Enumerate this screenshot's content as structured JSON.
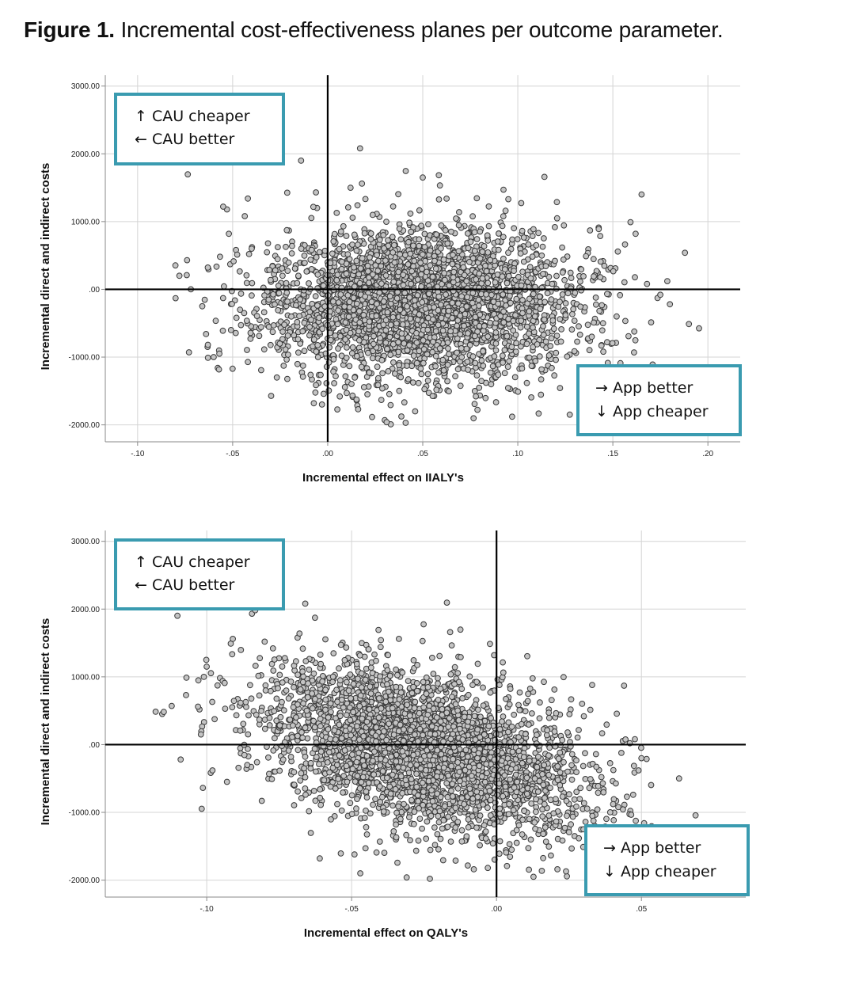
{
  "figure": {
    "title_lead": "Figure 1.",
    "title_rest": " Incremental cost-effectiveness planes per outcome parameter."
  },
  "colors": {
    "box_border": "#3a9bb0",
    "point_fill": "#c4c4c4",
    "point_stroke": "#3a3a3a",
    "grid": "#d4d4d4",
    "zero_line": "#000000"
  },
  "chart_data": [
    {
      "type": "scatter",
      "title": "",
      "xlabel": "Incremental effect on IIALY's",
      "ylabel": "Incremental direct and indirect costs",
      "xlim": [
        -0.117,
        0.217
      ],
      "ylim": [
        -2250,
        3160
      ],
      "xticks": [
        -0.1,
        -0.05,
        0.0,
        0.05,
        0.1,
        0.15,
        0.2
      ],
      "xtick_labels": [
        "-.10",
        "-.05",
        ".00",
        ".05",
        ".10",
        ".15",
        ".20"
      ],
      "yticks": [
        3000,
        2000,
        1000,
        0,
        -1000,
        -2000
      ],
      "ytick_labels": [
        "3000.00",
        "2000.00",
        "1000.00",
        ".00",
        "-1000.00",
        "-2000.00"
      ],
      "grid": true,
      "quadrant_labels": {
        "top_left": [
          "↑ CAU cheaper",
          "← CAU better"
        ],
        "bottom_right": [
          "→ App better",
          "↓ App cheaper"
        ]
      },
      "cloud": {
        "n": 3200,
        "x_mean": 0.05,
        "x_sd": 0.04,
        "y_mean": -200,
        "y_sd": 560,
        "corr": 0.0,
        "seed": 11
      },
      "outliers": [
        [
          -0.078,
          200
        ],
        [
          -0.072,
          0
        ],
        [
          -0.08,
          -130
        ],
        [
          -0.074,
          430
        ],
        [
          -0.066,
          -250
        ],
        [
          -0.064,
          -660
        ],
        [
          -0.073,
          -930
        ],
        [
          -0.063,
          -1010
        ],
        [
          -0.053,
          1180
        ],
        [
          -0.052,
          820
        ],
        [
          -0.055,
          1220
        ],
        [
          -0.042,
          1340
        ],
        [
          -0.06,
          -1000
        ],
        [
          -0.057,
          -950
        ],
        [
          -0.048,
          -420
        ],
        [
          -0.04,
          600
        ],
        [
          0.017,
          2080
        ],
        [
          0.05,
          1650
        ],
        [
          0.114,
          1660
        ],
        [
          0.162,
          820
        ],
        [
          0.138,
          870
        ],
        [
          0.168,
          80
        ],
        [
          0.175,
          -80
        ],
        [
          0.18,
          -220
        ],
        [
          0.14,
          -490
        ],
        [
          0.152,
          -400
        ],
        [
          0.147,
          -780
        ],
        [
          0.145,
          -920
        ],
        [
          0.154,
          -1090
        ],
        [
          0.097,
          -1880
        ],
        [
          0.046,
          -1800
        ],
        [
          0.03,
          -1930
        ],
        [
          0.041,
          -1970
        ],
        [
          0.031,
          -1960
        ],
        [
          0.016,
          -1770
        ],
        [
          -0.003,
          -1700
        ],
        [
          0.01,
          -1530
        ],
        [
          0.012,
          1500
        ],
        [
          0.018,
          1560
        ],
        [
          0.095,
          1330
        ]
      ]
    },
    {
      "type": "scatter",
      "title": "",
      "xlabel": "Incremental effect on QALY's",
      "ylabel": "Incremental direct and indirect costs",
      "xlim": [
        -0.135,
        0.086
      ],
      "ylim": [
        -2250,
        3160
      ],
      "xticks": [
        -0.1,
        -0.05,
        0.0,
        0.05
      ],
      "xtick_labels": [
        "-.10",
        "-.05",
        ".00",
        ".05"
      ],
      "yticks": [
        3000,
        2000,
        1000,
        0,
        -1000,
        -2000
      ],
      "ytick_labels": [
        "3000.00",
        "2000.00",
        "1000.00",
        ".00",
        "-1000.00",
        "-2000.00"
      ],
      "grid": true,
      "quadrant_labels": {
        "top_left": [
          "↑ CAU cheaper",
          "← CAU better"
        ],
        "bottom_right": [
          "→ App better",
          "↓ App cheaper"
        ]
      },
      "cloud": {
        "n": 3300,
        "x_mean": -0.026,
        "x_sd": 0.028,
        "y_mean": -60,
        "y_sd": 620,
        "corr": -0.45,
        "seed": 29
      },
      "outliers": [
        [
          -0.109,
          -220
        ],
        [
          -0.103,
          560
        ],
        [
          -0.102,
          150
        ],
        [
          -0.101,
          1000
        ],
        [
          -0.1,
          1150
        ],
        [
          -0.098,
          -380
        ],
        [
          -0.093,
          -550
        ],
        [
          -0.091,
          1560
        ],
        [
          -0.066,
          2080
        ],
        [
          -0.068,
          1640
        ],
        [
          -0.04,
          1440
        ],
        [
          -0.016,
          1660
        ],
        [
          0.033,
          880
        ],
        [
          0.044,
          870
        ],
        [
          0.063,
          -500
        ],
        [
          0.05,
          -200
        ],
        [
          0.046,
          20
        ],
        [
          0.049,
          -380
        ],
        [
          0.024,
          -1870
        ],
        [
          0.021,
          -1840
        ],
        [
          0.001,
          -1610
        ],
        [
          -0.003,
          -1820
        ],
        [
          -0.023,
          -1980
        ],
        [
          -0.031,
          -1960
        ],
        [
          -0.047,
          -1900
        ],
        [
          -0.061,
          -1680
        ],
        [
          -0.049,
          -1620
        ],
        [
          -0.081,
          -830
        ],
        [
          -0.08,
          1520
        ],
        [
          0.03,
          -1250
        ]
      ]
    }
  ]
}
